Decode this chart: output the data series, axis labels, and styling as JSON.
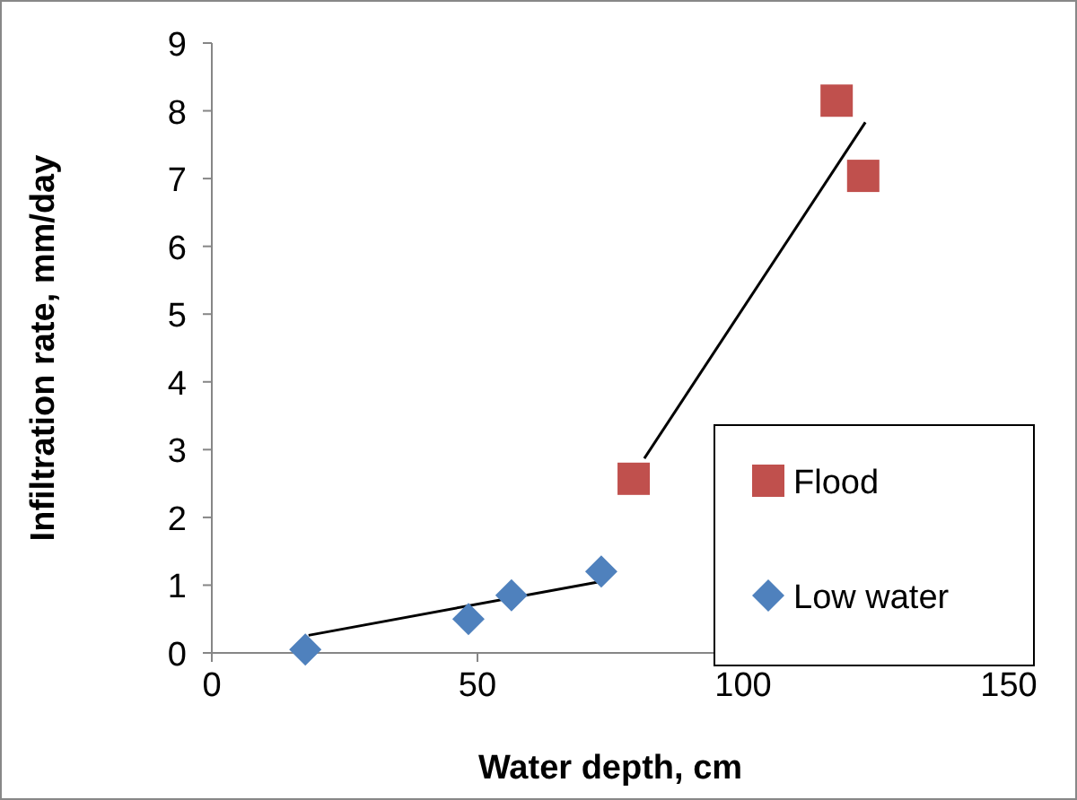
{
  "chart_data": {
    "type": "scatter",
    "xlabel": "Water depth, cm",
    "ylabel": "Infiltration rate, mm/day",
    "xlim": [
      0,
      150
    ],
    "xticks": [
      0,
      50,
      100,
      150
    ],
    "ylim": [
      0,
      9
    ],
    "yticks": [
      0,
      1,
      2,
      3,
      4,
      5,
      6,
      7,
      8,
      9
    ],
    "grid": false,
    "legend": "bottom right",
    "series": [
      {
        "name": "Flood",
        "color": "#c0504d",
        "marker": "square",
        "x": [
          79.4,
          117.6,
          122.6
        ],
        "values": [
          2.57,
          8.15,
          7.04
        ]
      },
      {
        "name": "Low water",
        "color": "#4f81bd",
        "marker": "diamond",
        "x": [
          17.6,
          48.3,
          56.4,
          73.3
        ],
        "values": [
          0.05,
          0.5,
          0.85,
          1.2
        ]
      },
      {
        "type": "line",
        "color": "#000000",
        "marker": "none",
        "x": [
          18.2,
          73.6
        ],
        "values": [
          0.26,
          1.06
        ]
      },
      {
        "type": "line",
        "color": "#000000",
        "marker": "none",
        "x": [
          81.4,
          123
        ],
        "values": [
          2.87,
          7.83
        ]
      }
    ]
  }
}
